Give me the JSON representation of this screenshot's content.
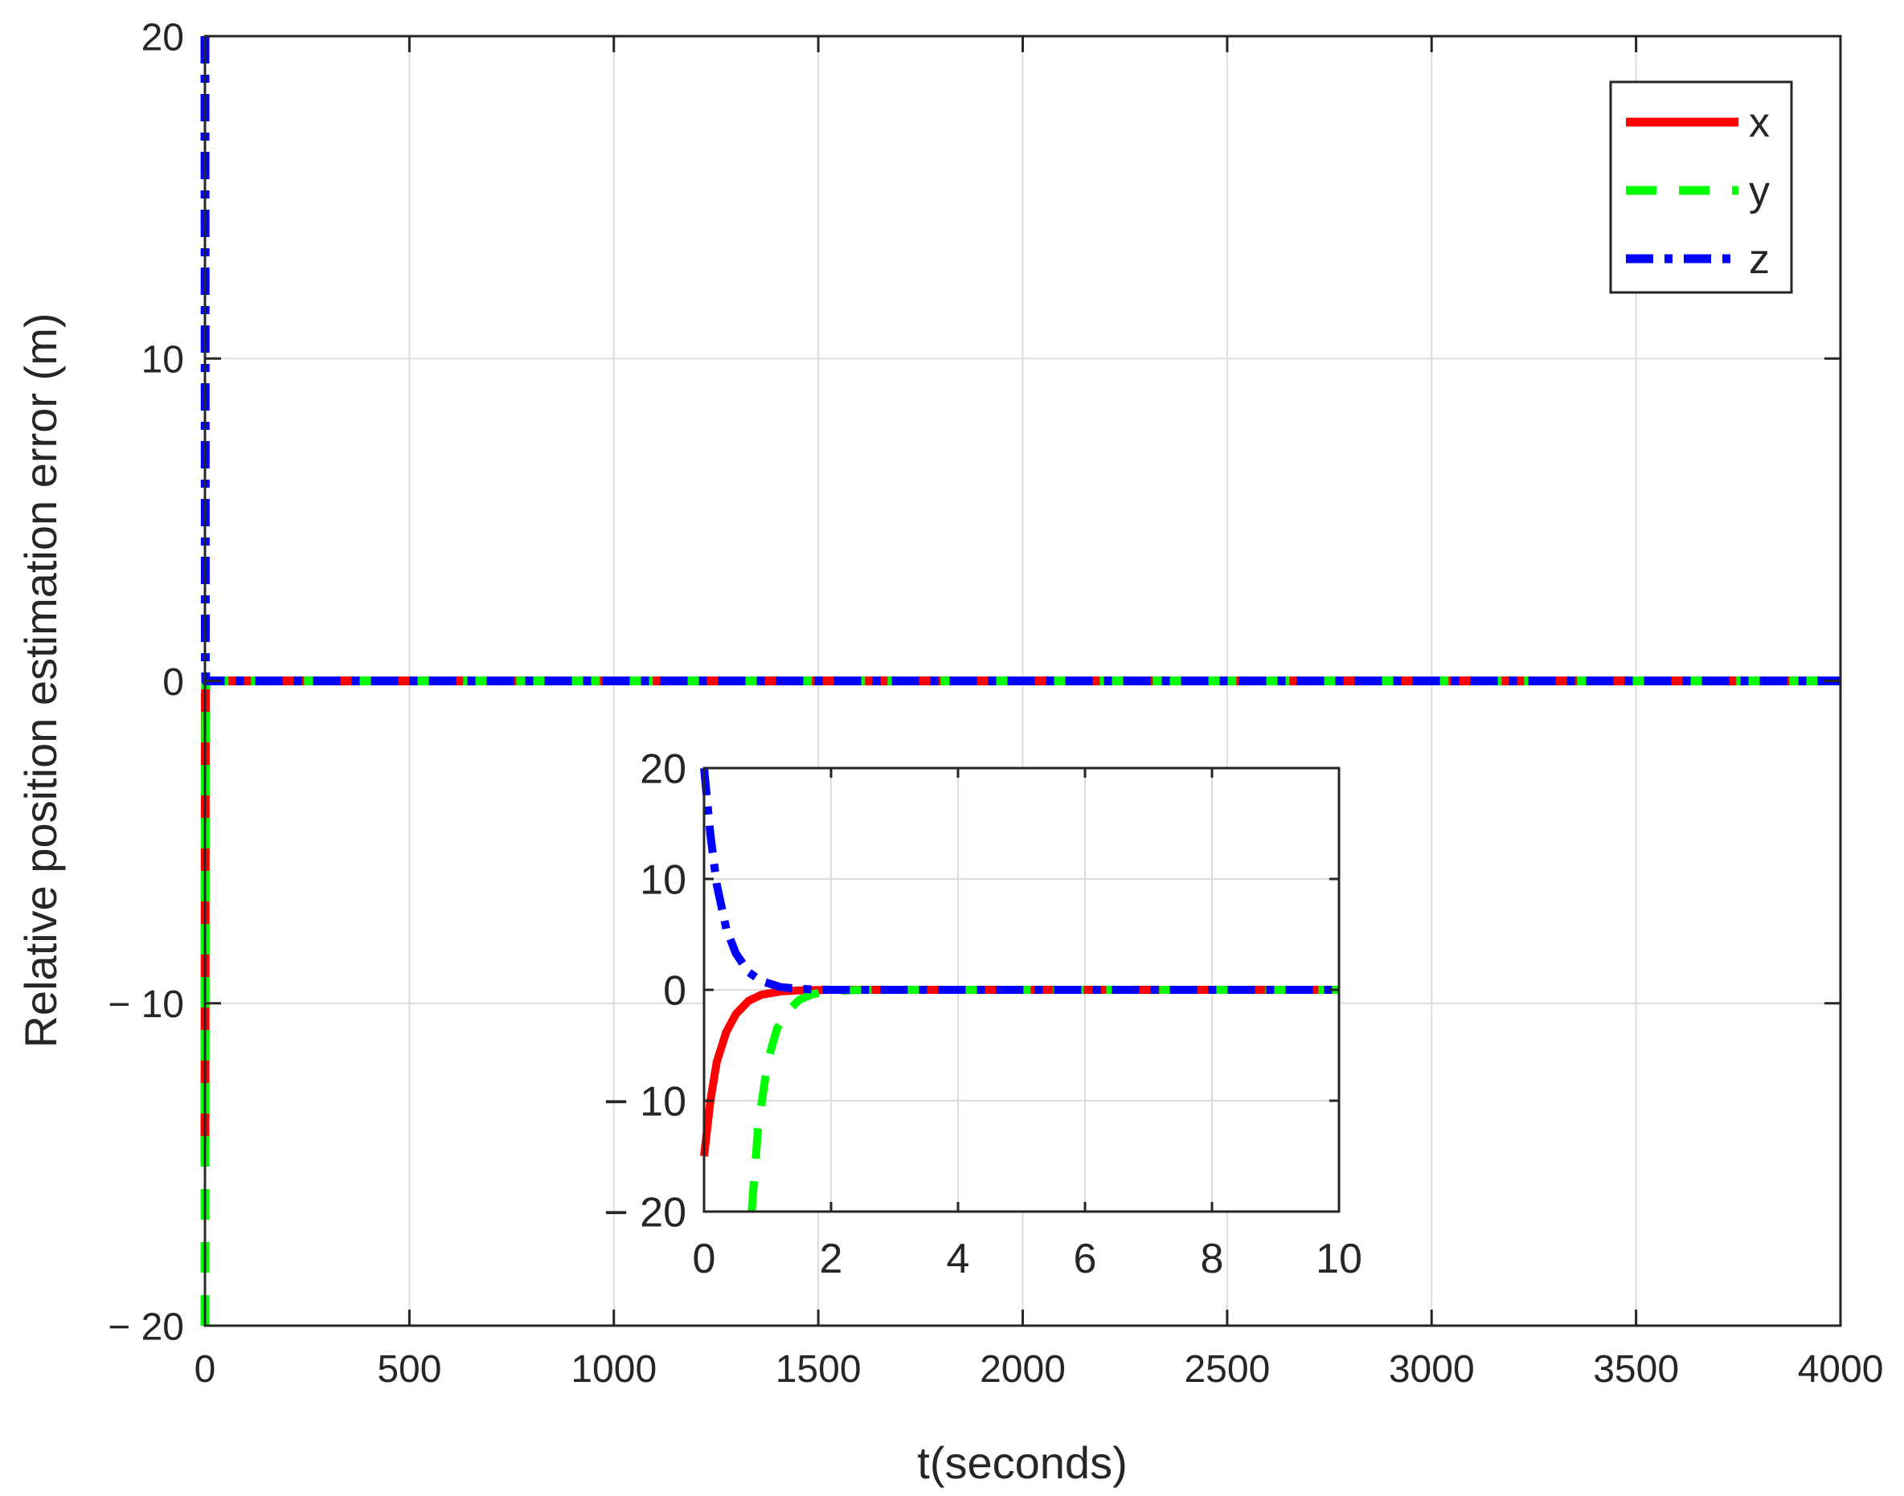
{
  "chart_data": [
    {
      "type": "line",
      "title": "",
      "xlabel": "t(seconds)",
      "ylabel": "Relative position estimation error (m)",
      "xlim": [
        0,
        4000
      ],
      "ylim": [
        -20,
        20
      ],
      "xticks": [
        0,
        500,
        1000,
        1500,
        2000,
        2500,
        3000,
        3500,
        4000
      ],
      "yticks": [
        -20,
        -10,
        0,
        10,
        20
      ],
      "xtick_labels": [
        "0",
        "500",
        "1000",
        "1500",
        "2000",
        "2500",
        "3000",
        "3500",
        "4000"
      ],
      "ytick_labels": [
        "− 20",
        "− 10",
        "0",
        "10",
        "20"
      ],
      "grid": true,
      "legend_position": "top-right",
      "series": [
        {
          "name": "x",
          "color": "#ff0000",
          "style": "solid",
          "x": [
            0,
            1,
            2,
            4,
            8,
            20,
            4000
          ],
          "y": [
            -15,
            -0.5,
            0,
            0,
            0,
            0,
            0
          ]
        },
        {
          "name": "y",
          "color": "#00ff00",
          "style": "dashed",
          "x": [
            0,
            1,
            2,
            4,
            8,
            20,
            4000
          ],
          "y": [
            -20,
            -3,
            -0.05,
            0,
            0,
            0,
            0
          ]
        },
        {
          "name": "z",
          "color": "#0000ff",
          "style": "dashdot",
          "x": [
            0,
            1,
            2,
            4,
            8,
            20,
            4000
          ],
          "y": [
            20,
            0.5,
            0,
            0,
            0,
            0,
            0
          ]
        }
      ]
    },
    {
      "type": "line",
      "title": "",
      "xlabel": "",
      "ylabel": "",
      "xlim": [
        0,
        10
      ],
      "ylim": [
        -20,
        20
      ],
      "xticks": [
        0,
        2,
        4,
        6,
        8,
        10
      ],
      "yticks": [
        -20,
        -10,
        0,
        10,
        20
      ],
      "xtick_labels": [
        "0",
        "2",
        "4",
        "6",
        "8",
        "10"
      ],
      "ytick_labels": [
        "− 20",
        "− 10",
        "0",
        "10",
        "20"
      ],
      "grid": true,
      "series": [
        {
          "name": "x",
          "color": "#ff0000",
          "style": "solid",
          "x": [
            0,
            0.1,
            0.2,
            0.35,
            0.5,
            0.7,
            0.9,
            1.2,
            1.5,
            2,
            10
          ],
          "y": [
            -15,
            -10,
            -6.5,
            -3.8,
            -2.2,
            -1.0,
            -0.45,
            -0.15,
            -0.05,
            0,
            0
          ]
        },
        {
          "name": "y",
          "color": "#00ff00",
          "style": "dashed",
          "x": [
            0.75,
            0.85,
            1.0,
            1.15,
            1.3,
            1.5,
            1.7,
            2.0,
            2.5,
            10
          ],
          "y": [
            -20,
            -12.5,
            -6.5,
            -3.5,
            -2.0,
            -0.9,
            -0.4,
            -0.1,
            0,
            0
          ]
        },
        {
          "name": "z",
          "color": "#0000ff",
          "style": "dashdot",
          "x": [
            0,
            0.1,
            0.2,
            0.35,
            0.5,
            0.7,
            0.9,
            1.2,
            1.5,
            2,
            10
          ],
          "y": [
            20,
            14,
            9.5,
            5.5,
            3.3,
            1.6,
            0.8,
            0.25,
            0.08,
            0,
            0
          ]
        }
      ]
    }
  ]
}
